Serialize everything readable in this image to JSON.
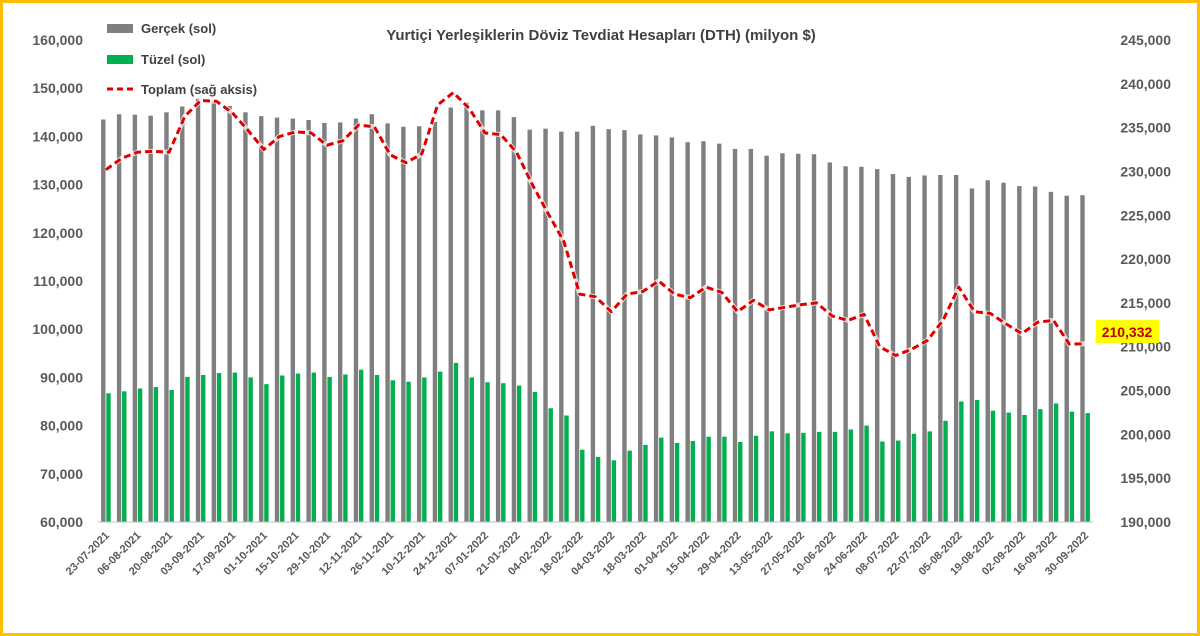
{
  "chart_data": {
    "type": "bar",
    "title": "Yurtiçi Yerleşiklerin Döviz Tevdiat Hesapları (DTH) (milyon $)",
    "categories": [
      "23-07-2021",
      "30-07-2021",
      "06-08-2021",
      "13-08-2021",
      "20-08-2021",
      "27-08-2021",
      "03-09-2021",
      "10-09-2021",
      "17-09-2021",
      "24-09-2021",
      "01-10-2021",
      "08-10-2021",
      "15-10-2021",
      "22-10-2021",
      "29-10-2021",
      "05-11-2021",
      "12-11-2021",
      "19-11-2021",
      "26-11-2021",
      "03-12-2021",
      "10-12-2021",
      "17-12-2021",
      "24-12-2021",
      "31-12-2021",
      "07-01-2022",
      "14-01-2022",
      "21-01-2022",
      "28-01-2022",
      "04-02-2022",
      "11-02-2022",
      "18-02-2022",
      "25-02-2022",
      "04-03-2022",
      "11-03-2022",
      "18-03-2022",
      "25-03-2022",
      "01-04-2022",
      "08-04-2022",
      "15-04-2022",
      "22-04-2022",
      "29-04-2022",
      "06-05-2022",
      "13-05-2022",
      "20-05-2022",
      "27-05-2022",
      "03-06-2022",
      "10-06-2022",
      "17-06-2022",
      "24-06-2022",
      "01-07-2022",
      "08-07-2022",
      "15-07-2022",
      "22-07-2022",
      "29-07-2022",
      "05-08-2022",
      "12-08-2022",
      "19-08-2022",
      "26-08-2022",
      "02-09-2022",
      "09-09-2022",
      "16-09-2022",
      "23-09-2022",
      "30-09-2022"
    ],
    "x_tick_labels": [
      "23-07-2021",
      "06-08-2021",
      "20-08-2021",
      "03-09-2021",
      "17-09-2021",
      "01-10-2021",
      "15-10-2021",
      "29-10-2021",
      "12-11-2021",
      "26-11-2021",
      "10-12-2021",
      "24-12-2021",
      "07-01-2022",
      "21-01-2022",
      "04-02-2022",
      "18-02-2022",
      "04-03-2022",
      "18-03-2022",
      "01-04-2022",
      "15-04-2022",
      "29-04-2022",
      "13-05-2022",
      "27-05-2022",
      "10-06-2022",
      "24-06-2022",
      "08-07-2022",
      "22-07-2022",
      "05-08-2022",
      "19-08-2022",
      "02-09-2022",
      "16-09-2022",
      "30-09-2022"
    ],
    "series": [
      {
        "name": "Gerçek (sol)",
        "type": "bar",
        "axis": "left",
        "color": "#7F7F7F",
        "values": [
          143500,
          144600,
          144500,
          144300,
          145000,
          146200,
          147800,
          147500,
          146300,
          145000,
          144200,
          143900,
          143700,
          143400,
          142800,
          142900,
          143700,
          144600,
          142700,
          142000,
          142100,
          143000,
          146000,
          147000,
          145400,
          145400,
          144000,
          141400,
          141600,
          141000,
          141000,
          142200,
          141500,
          141300,
          140400,
          140200,
          139800,
          138800,
          139000,
          138500,
          137400,
          137400,
          136000,
          136500,
          136400,
          136300,
          134600,
          133800,
          133700,
          133200,
          132200,
          131600,
          131900,
          132000,
          132000,
          129200,
          130900,
          130400,
          129700,
          129600,
          128500,
          127700,
          127800
        ]
      },
      {
        "name": "Tüzel (sol)",
        "type": "bar",
        "axis": "left",
        "color": "#00B050",
        "values": [
          86700,
          87100,
          87700,
          88000,
          87400,
          90100,
          90500,
          90900,
          91000,
          90000,
          88600,
          90400,
          90800,
          91000,
          90100,
          90600,
          91600,
          90500,
          89400,
          89100,
          90000,
          91200,
          93000,
          90000,
          89000,
          88800,
          88300,
          87000,
          83600,
          82100,
          75000,
          73500,
          72800,
          74800,
          76000,
          77500,
          76400,
          76800,
          77700,
          77700,
          76600,
          77900,
          78800,
          78400,
          78500,
          78700,
          78700,
          79200,
          80000,
          76700,
          76900,
          78300,
          78800,
          81000,
          85000,
          85300,
          83100,
          82700,
          82200,
          83400,
          84600,
          82900,
          82600
        ]
      },
      {
        "name": "Toplam (sağ aksis)",
        "type": "line",
        "axis": "right",
        "color": "#E00000",
        "values": [
          230200,
          231500,
          232200,
          232300,
          232200,
          236300,
          238100,
          238000,
          236700,
          234700,
          232500,
          234000,
          234500,
          234400,
          233000,
          233500,
          235300,
          235100,
          231900,
          231000,
          232000,
          237600,
          239000,
          237200,
          234400,
          234200,
          232200,
          228500,
          225200,
          222000,
          216000,
          215700,
          214000,
          216000,
          216300,
          217500,
          216000,
          215600,
          216800,
          216200,
          214000,
          215300,
          214200,
          214500,
          214800,
          215000,
          213500,
          213000,
          213700,
          210000,
          209000,
          209700,
          210700,
          213000,
          216800,
          214000,
          213800,
          212600,
          211500,
          212800,
          213000,
          210300,
          210332
        ]
      }
    ],
    "y_left": {
      "min": 60000,
      "max": 160000,
      "ticks": [
        "60,000",
        "70,000",
        "80,000",
        "90,000",
        "100,000",
        "110,000",
        "120,000",
        "130,000",
        "140,000",
        "150,000",
        "160,000"
      ]
    },
    "y_right": {
      "min": 190000,
      "max": 245000,
      "ticks": [
        "190,000",
        "195,000",
        "200,000",
        "205,000",
        "210,000",
        "215,000",
        "220,000",
        "225,000",
        "230,000",
        "235,000",
        "240,000",
        "245,000"
      ]
    },
    "callout": {
      "text": "210,332",
      "background": "#FFFF00",
      "color": "#C00000"
    },
    "legend_placement": "top-left",
    "grid": false,
    "frame_color": "#FFC000"
  }
}
